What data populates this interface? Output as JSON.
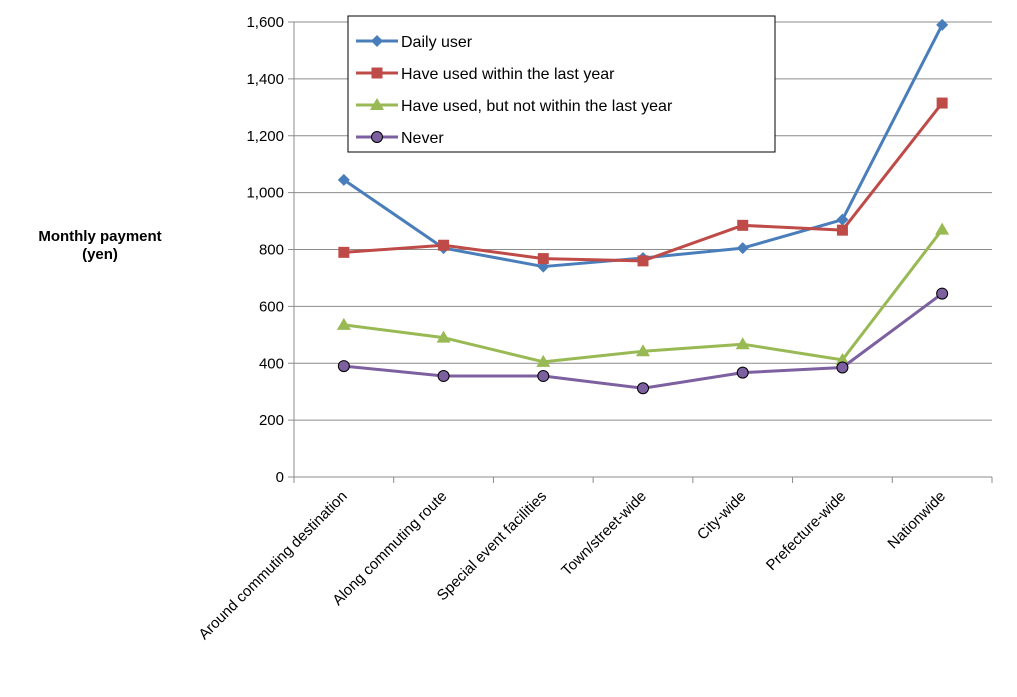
{
  "chart_data": {
    "type": "line",
    "title": "",
    "xlabel": "",
    "ylabel_lines": [
      "Monthly payment",
      "(yen)"
    ],
    "ylim": [
      0,
      1600
    ],
    "yticks": [
      0,
      200,
      400,
      600,
      800,
      1000,
      1200,
      1400,
      1600
    ],
    "ytick_labels": [
      "0",
      "200",
      "400",
      "600",
      "800",
      "1,000",
      "1,200",
      "1,400",
      "1,600"
    ],
    "grid": "horizontal",
    "legend_position": "top-center",
    "categories": [
      "Around commuting destination",
      "Along commuting route",
      "Special event facilities",
      "Town/street-wide",
      "City-wide",
      "Prefecture-wide",
      "Nationwide"
    ],
    "series": [
      {
        "name": "Daily user",
        "color": "#4a7ebb",
        "marker": "diamond",
        "values": [
          1045,
          805,
          740,
          770,
          805,
          905,
          1590
        ]
      },
      {
        "name": "Have used within the last year",
        "color": "#be4b48",
        "marker": "square",
        "values": [
          790,
          815,
          768,
          760,
          885,
          868,
          1315
        ]
      },
      {
        "name": "Have used, but not within the last year",
        "color": "#98b954",
        "marker": "triangle",
        "values": [
          535,
          490,
          405,
          442,
          467,
          412,
          870
        ]
      },
      {
        "name": "Never",
        "color": "#7d60a0",
        "marker": "circle",
        "values": [
          390,
          355,
          355,
          312,
          367,
          385,
          645
        ]
      }
    ]
  }
}
